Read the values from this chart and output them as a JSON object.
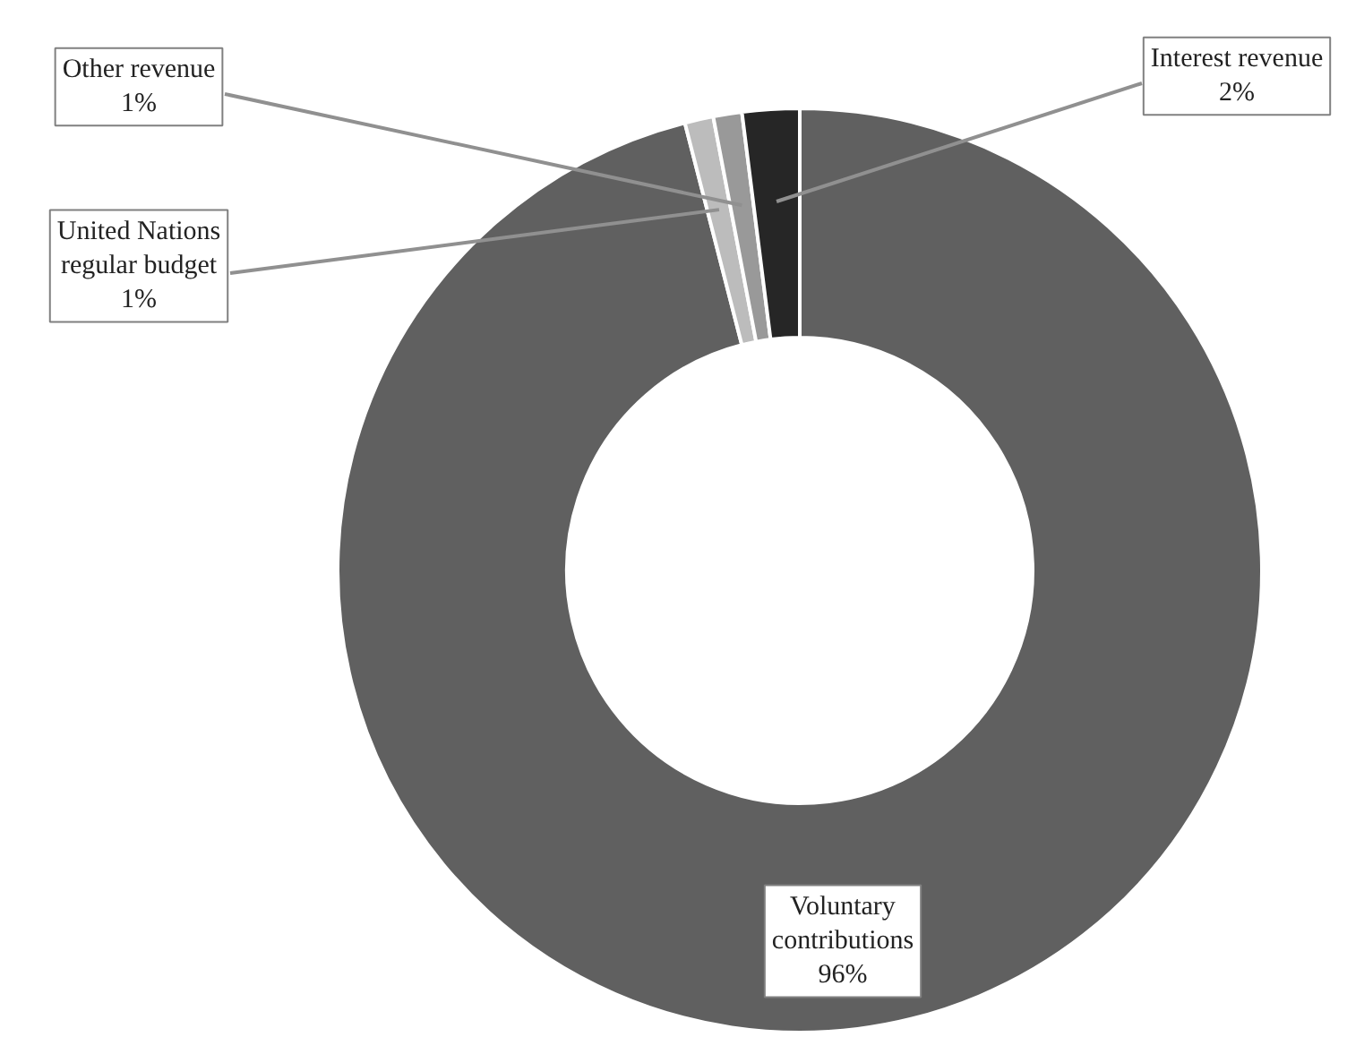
{
  "chart_data": {
    "type": "donut",
    "categories": [
      "Voluntary contributions",
      "United Nations regular budget",
      "Other revenue",
      "Interest revenue"
    ],
    "values": [
      96,
      1,
      1,
      2
    ],
    "colors": [
      "#606060",
      "#bcbcbc",
      "#999999",
      "#262626"
    ],
    "data_labels": true,
    "value_labels": [
      "96%",
      "1%",
      "1%",
      "2%"
    ]
  }
}
